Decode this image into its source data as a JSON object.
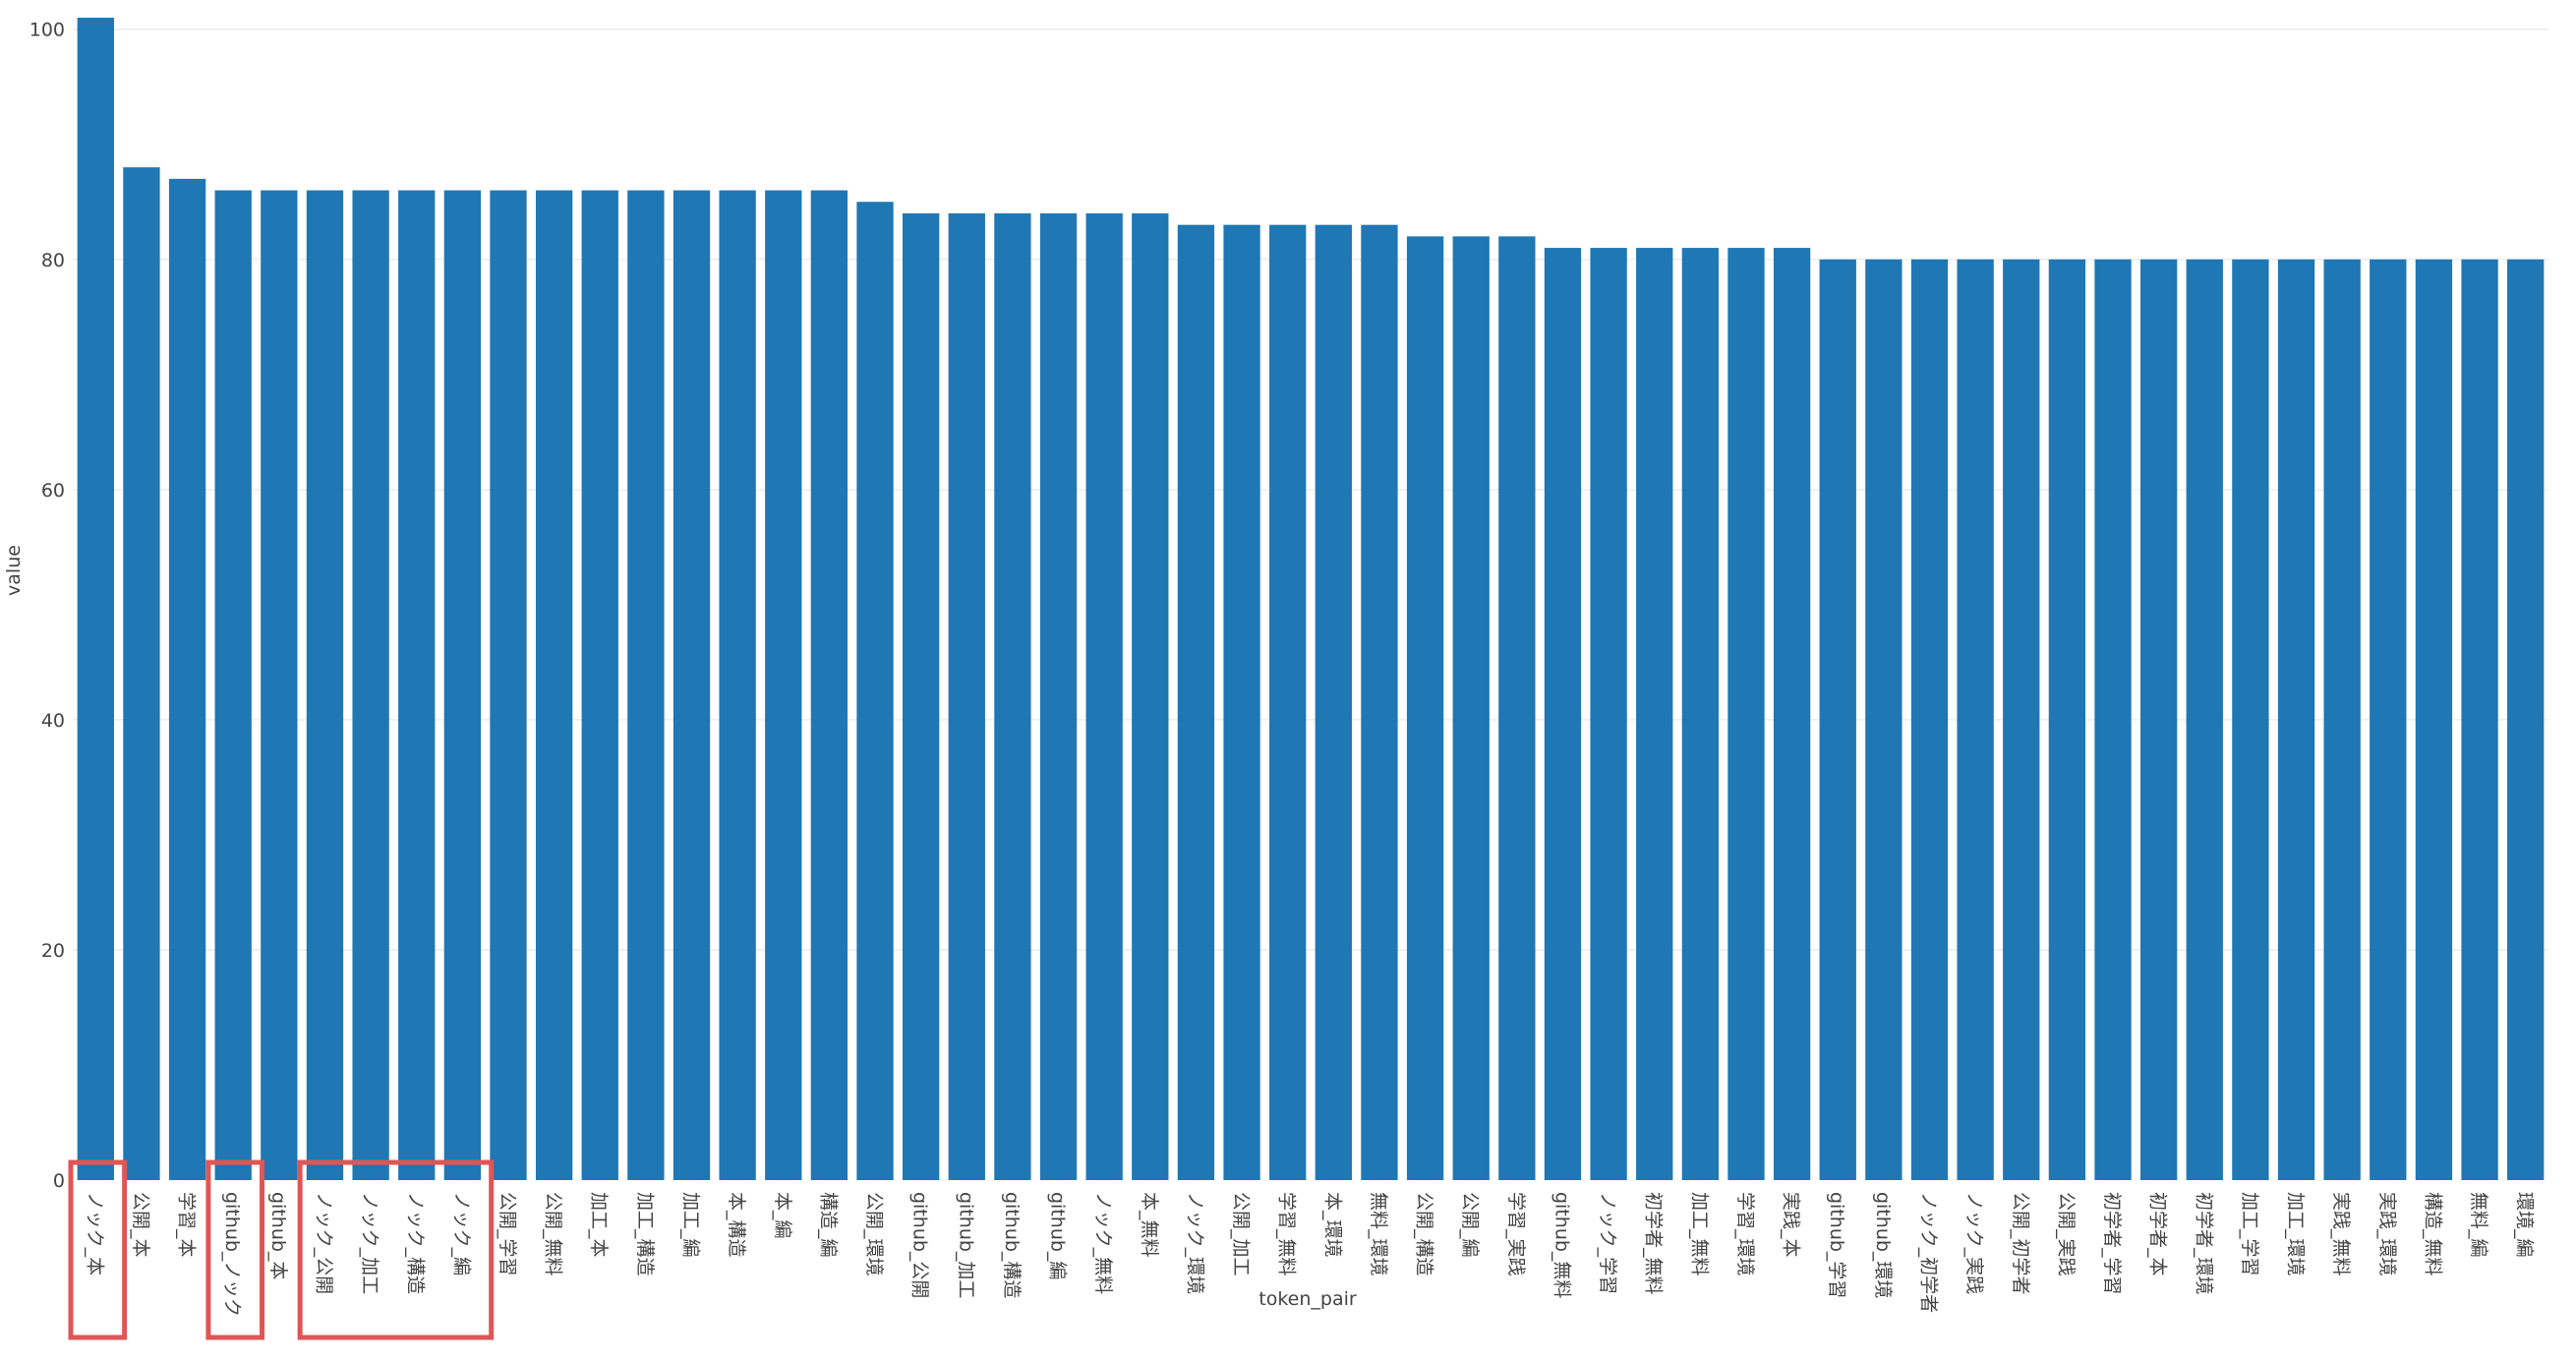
{
  "chart_data": {
    "type": "bar",
    "xlabel": "token_pair",
    "ylabel": "value",
    "ylim": [
      0,
      101
    ],
    "yticks": [
      20,
      40,
      60,
      80,
      100
    ],
    "y_zero_label": "0",
    "grid": true,
    "bar_color": "#1f77b4",
    "categories": [
      "ノック_本",
      "公開_本",
      "学習_本",
      "github_ノック",
      "github_本",
      "ノック_公開",
      "ノック_加工",
      "ノック_構造",
      "ノック_編",
      "公開_学習",
      "公開_無料",
      "加工_本",
      "加工_構造",
      "加工_編",
      "本_構造",
      "本_編",
      "構造_編",
      "公開_環境",
      "github_公開",
      "github_加工",
      "github_構造",
      "github_編",
      "ノック_無料",
      "本_無料",
      "ノック_環境",
      "公開_加工",
      "学習_無料",
      "本_環境",
      "無料_環境",
      "公開_構造",
      "公開_編",
      "学習_実践",
      "github_無料",
      "ノック_学習",
      "初学者_無料",
      "加工_無料",
      "学習_環境",
      "実践_本",
      "github_学習",
      "github_環境",
      "ノック_初学者",
      "ノック_実践",
      "公開_初学者",
      "公開_実践",
      "初学者_学習",
      "初学者_本",
      "初学者_環境",
      "加工_学習",
      "加工_環境",
      "実践_無料",
      "実践_環境",
      "構造_無料",
      "無料_編",
      "環境_編"
    ],
    "values": [
      101,
      88,
      87,
      86,
      86,
      86,
      86,
      86,
      86,
      86,
      86,
      86,
      86,
      86,
      86,
      86,
      86,
      85,
      84,
      84,
      84,
      84,
      84,
      84,
      83,
      83,
      83,
      83,
      83,
      82,
      82,
      82,
      81,
      81,
      81,
      81,
      81,
      81,
      80,
      80,
      80,
      80,
      80,
      80,
      80,
      80,
      80,
      80,
      80,
      80,
      80,
      80,
      80,
      80
    ],
    "annotations": {
      "type": "highlight-box",
      "color": "#e05555",
      "groups": [
        [
          0,
          0
        ],
        [
          3,
          3
        ],
        [
          5,
          8
        ]
      ]
    }
  }
}
